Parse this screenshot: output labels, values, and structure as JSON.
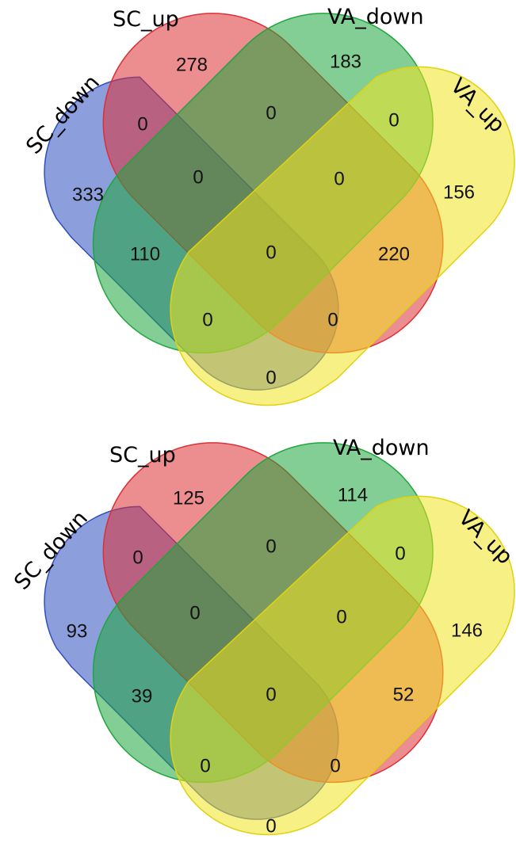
{
  "colors": {
    "SC_down": "#2f4fbf",
    "SC_up": "#dd2f35",
    "VA_down": "#1ea63c",
    "VA_up": "#f1e41f"
  },
  "diagrams": [
    {
      "labels": {
        "sc_down": "SC_down",
        "sc_up": "SC_up",
        "va_down": "VA_down",
        "va_up": "VA_up"
      },
      "counts": {
        "sc_up_only": "278",
        "va_down_only": "183",
        "sc_down_only": "333",
        "va_up_only": "156",
        "scdown_scup": "0",
        "scup_vadown": "0",
        "vadown_vaup": "0",
        "scdown_scup_vadown": "0",
        "scup_vadown_vaup": "0",
        "scdown_vadown": "110",
        "scup_vaup": "220",
        "all_four": "0",
        "scdown_vadown_vaup": "0",
        "scdown_scup_vaup": "0",
        "scdown_vaup": "0"
      }
    },
    {
      "labels": {
        "sc_down": "SC_down",
        "sc_up": "SC_up",
        "va_down": "VA_down",
        "va_up": "VA_up"
      },
      "counts": {
        "sc_up_only": "125",
        "va_down_only": "114",
        "sc_down_only": "93",
        "va_up_only": "146",
        "scdown_scup": "0",
        "scup_vadown": "0",
        "vadown_vaup": "0",
        "scdown_scup_vadown": "0",
        "scup_vadown_vaup": "0",
        "scdown_vadown": "39",
        "scup_vaup": "52",
        "all_four": "0",
        "scdown_vadown_vaup": "0",
        "scdown_scup_vaup": "0",
        "scdown_vaup": "0"
      }
    }
  ]
}
